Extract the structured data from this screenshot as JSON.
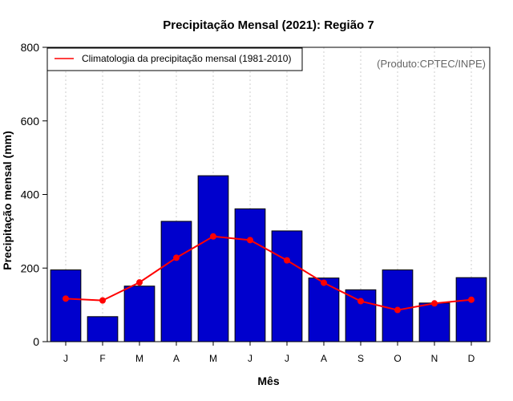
{
  "chart_data": {
    "type": "bar",
    "title": "Precipitação Mensal (2021): Região 7",
    "xlabel": "Mês",
    "ylabel": "Precipitação mensal (mm)",
    "ylim": [
      0,
      800
    ],
    "yticks": [
      0,
      200,
      400,
      600,
      800
    ],
    "grid": "vertical dotted",
    "categories": [
      "J",
      "F",
      "M",
      "A",
      "M",
      "J",
      "J",
      "A",
      "S",
      "O",
      "N",
      "D"
    ],
    "series": [
      {
        "name": "Precipitação mensal 2021",
        "kind": "bar",
        "color": "#0000CD",
        "values": [
          195,
          68,
          151,
          327,
          451,
          361,
          301,
          173,
          141,
          195,
          105,
          174
        ]
      },
      {
        "name": "Climatologia da precipitação mensal (1981-2010)",
        "kind": "line",
        "color": "#FF0000",
        "values": [
          117,
          112,
          161,
          228,
          286,
          276,
          221,
          160,
          110,
          86,
          104,
          114
        ]
      }
    ],
    "legend": {
      "position": "top-left",
      "entries": [
        "Climatologia da precipitação mensal (1981-2010)"
      ]
    },
    "annotation": "(Produto:CPTEC/INPE)"
  }
}
